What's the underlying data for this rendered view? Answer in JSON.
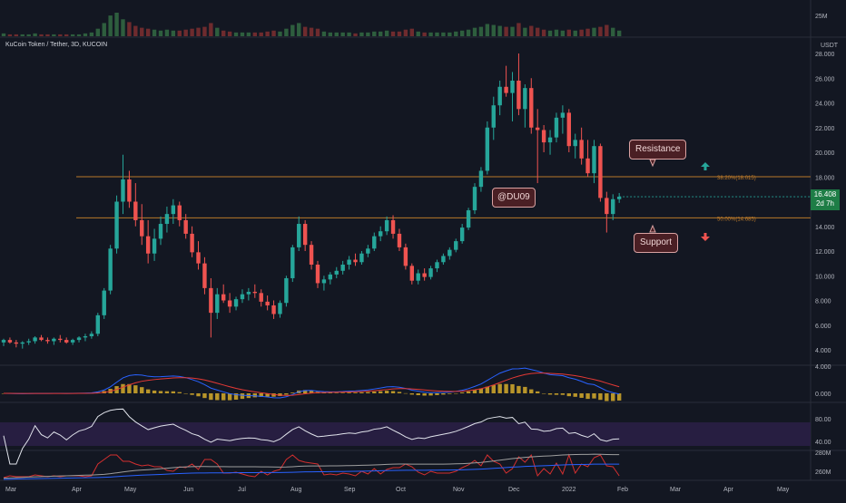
{
  "header": {
    "symbol": "KuCoin Token / Tether, 3D, KUCOIN"
  },
  "volume_axis": {
    "top_label": "25M"
  },
  "price_axis": {
    "unit": "USDT",
    "ticks": [
      "28.000",
      "26.000",
      "24.000",
      "22.000",
      "20.000",
      "18.000",
      "16.000",
      "14.000",
      "12.000",
      "10.000",
      "8.000",
      "6.000",
      "4.000"
    ],
    "last_price": "16.408",
    "countdown": "2d 7h"
  },
  "macd_axis": {
    "ticks": [
      "4.000",
      "0.000"
    ]
  },
  "rsi_axis": {
    "ticks": [
      "80.00",
      "40.00"
    ]
  },
  "bottom_axis": {
    "ticks": [
      "280M",
      "260M"
    ]
  },
  "time_axis": {
    "labels": [
      "Mar",
      "Apr",
      "May",
      "Jun",
      "Jul",
      "Aug",
      "Sep",
      "Oct",
      "Nov",
      "Dec",
      "2022",
      "Feb",
      "Mar",
      "Apr",
      "May"
    ]
  },
  "fib_levels": [
    {
      "label": "38.20%(18.015)",
      "value": 18.015
    },
    {
      "label": "50.00%(14.685)",
      "value": 14.685
    }
  ],
  "annotations": {
    "resistance": "Resistance",
    "support": "Support",
    "watermark": "@DU09"
  },
  "colors": {
    "up": "#26a69a",
    "down": "#ef5350",
    "fib": "#b8782a",
    "background": "#131722"
  },
  "chart_data": {
    "type": "candlestick",
    "timeframe": "3D",
    "ylim": [
      3,
      29
    ],
    "ohlc": [
      [
        4.6,
        4.9,
        4.3,
        4.8
      ],
      [
        4.8,
        5.0,
        4.5,
        4.6
      ],
      [
        4.6,
        4.8,
        4.2,
        4.5
      ],
      [
        4.5,
        4.7,
        4.1,
        4.6
      ],
      [
        4.6,
        4.9,
        4.4,
        4.7
      ],
      [
        4.7,
        5.1,
        4.5,
        5.0
      ],
      [
        5.0,
        5.2,
        4.7,
        4.8
      ],
      [
        4.8,
        5.0,
        4.5,
        4.7
      ],
      [
        4.7,
        5.0,
        4.4,
        4.9
      ],
      [
        4.9,
        5.2,
        4.6,
        4.8
      ],
      [
        4.8,
        5.0,
        4.5,
        4.6
      ],
      [
        4.6,
        4.9,
        4.4,
        4.8
      ],
      [
        4.8,
        5.1,
        4.6,
        5.0
      ],
      [
        5.0,
        5.3,
        4.7,
        5.1
      ],
      [
        5.1,
        5.5,
        4.9,
        5.3
      ],
      [
        5.3,
        7.0,
        5.1,
        6.8
      ],
      [
        6.8,
        9.0,
        6.5,
        8.8
      ],
      [
        8.8,
        12.5,
        8.5,
        12.2
      ],
      [
        12.2,
        16.5,
        11.8,
        16.0
      ],
      [
        16.0,
        19.8,
        15.0,
        17.8
      ],
      [
        17.8,
        18.5,
        15.5,
        16.0
      ],
      [
        16.0,
        17.5,
        14.0,
        14.5
      ],
      [
        14.5,
        15.8,
        12.5,
        13.2
      ],
      [
        13.2,
        14.5,
        11.0,
        11.8
      ],
      [
        11.8,
        13.8,
        11.2,
        13.0
      ],
      [
        13.0,
        14.8,
        12.5,
        14.2
      ],
      [
        14.2,
        15.6,
        13.5,
        15.0
      ],
      [
        15.0,
        16.2,
        14.2,
        15.7
      ],
      [
        15.7,
        16.0,
        14.0,
        14.5
      ],
      [
        14.5,
        15.0,
        13.0,
        13.4
      ],
      [
        13.4,
        14.0,
        11.5,
        11.9
      ],
      [
        11.9,
        12.8,
        10.5,
        11.0
      ],
      [
        11.0,
        11.5,
        8.5,
        9.0
      ],
      [
        9.0,
        9.8,
        5.0,
        7.0
      ],
      [
        7.0,
        9.0,
        6.5,
        8.5
      ],
      [
        8.5,
        9.3,
        7.8,
        8.0
      ],
      [
        8.0,
        8.6,
        7.0,
        7.5
      ],
      [
        7.5,
        8.3,
        7.2,
        8.1
      ],
      [
        8.1,
        8.9,
        7.8,
        8.5
      ],
      [
        8.5,
        9.0,
        8.0,
        8.7
      ],
      [
        8.7,
        9.3,
        8.2,
        8.6
      ],
      [
        8.6,
        8.9,
        7.5,
        7.9
      ],
      [
        7.9,
        8.4,
        7.2,
        7.6
      ],
      [
        7.6,
        8.0,
        6.5,
        6.9
      ],
      [
        6.9,
        8.0,
        6.6,
        7.8
      ],
      [
        7.8,
        10.0,
        7.5,
        9.8
      ],
      [
        9.8,
        12.5,
        9.5,
        12.3
      ],
      [
        12.3,
        14.8,
        12.0,
        14.2
      ],
      [
        14.2,
        14.5,
        12.0,
        12.5
      ],
      [
        12.5,
        12.8,
        10.5,
        10.9
      ],
      [
        10.9,
        11.2,
        9.0,
        9.4
      ],
      [
        9.4,
        10.0,
        8.8,
        9.7
      ],
      [
        9.7,
        10.3,
        9.3,
        10.1
      ],
      [
        10.1,
        10.7,
        9.8,
        10.4
      ],
      [
        10.4,
        11.2,
        10.1,
        10.9
      ],
      [
        10.9,
        11.6,
        10.5,
        11.3
      ],
      [
        11.3,
        11.8,
        10.8,
        11.1
      ],
      [
        11.1,
        12.0,
        10.9,
        11.8
      ],
      [
        11.8,
        12.5,
        11.5,
        12.2
      ],
      [
        12.2,
        13.5,
        12.0,
        13.2
      ],
      [
        13.2,
        14.0,
        12.8,
        13.6
      ],
      [
        13.6,
        14.8,
        13.3,
        14.5
      ],
      [
        14.5,
        14.9,
        13.0,
        13.4
      ],
      [
        13.4,
        13.8,
        12.0,
        12.3
      ],
      [
        12.3,
        12.6,
        10.5,
        10.8
      ],
      [
        10.8,
        11.0,
        9.3,
        9.6
      ],
      [
        9.6,
        10.5,
        9.3,
        10.2
      ],
      [
        10.2,
        10.6,
        9.6,
        9.9
      ],
      [
        9.9,
        10.8,
        9.7,
        10.6
      ],
      [
        10.6,
        11.3,
        10.3,
        11.1
      ],
      [
        11.1,
        11.8,
        10.9,
        11.6
      ],
      [
        11.6,
        12.3,
        11.3,
        12.1
      ],
      [
        12.1,
        13.0,
        11.9,
        12.8
      ],
      [
        12.8,
        14.2,
        12.6,
        13.9
      ],
      [
        13.9,
        15.5,
        13.7,
        15.3
      ],
      [
        15.3,
        17.5,
        15.0,
        17.2
      ],
      [
        17.2,
        18.8,
        16.8,
        18.5
      ],
      [
        18.5,
        22.5,
        18.2,
        22.0
      ],
      [
        22.0,
        24.5,
        21.0,
        23.8
      ],
      [
        23.8,
        25.8,
        23.0,
        25.3
      ],
      [
        25.3,
        27.0,
        24.5,
        24.8
      ],
      [
        24.8,
        26.5,
        22.5,
        25.8
      ],
      [
        25.8,
        28.0,
        23.0,
        23.5
      ],
      [
        23.5,
        25.5,
        22.0,
        25.2
      ],
      [
        25.2,
        26.0,
        21.5,
        22.0
      ],
      [
        22.0,
        23.5,
        17.5,
        21.8
      ],
      [
        21.8,
        22.2,
        20.0,
        20.8
      ],
      [
        20.8,
        21.8,
        19.8,
        21.2
      ],
      [
        21.2,
        23.2,
        20.8,
        22.8
      ],
      [
        22.8,
        23.8,
        21.5,
        23.2
      ],
      [
        23.2,
        23.5,
        20.0,
        20.5
      ],
      [
        20.5,
        21.5,
        19.5,
        21.0
      ],
      [
        21.0,
        22.0,
        19.0,
        19.5
      ],
      [
        19.5,
        21.0,
        18.0,
        18.3
      ],
      [
        18.3,
        21.0,
        17.5,
        20.5
      ],
      [
        20.5,
        20.7,
        16.0,
        16.3
      ],
      [
        16.3,
        16.8,
        13.5,
        15.0
      ],
      [
        15.0,
        16.6,
        14.5,
        16.2
      ],
      [
        16.2,
        16.7,
        15.9,
        16.4
      ]
    ],
    "volume": [
      3,
      2,
      2,
      2,
      2,
      3,
      2,
      2,
      2,
      2,
      2,
      2,
      2,
      3,
      4,
      8,
      14,
      22,
      25,
      18,
      15,
      11,
      9,
      8,
      7,
      6,
      7,
      6,
      6,
      7,
      8,
      9,
      10,
      14,
      9,
      6,
      5,
      4,
      4,
      4,
      4,
      4,
      5,
      6,
      5,
      8,
      12,
      14,
      10,
      9,
      8,
      5,
      4,
      4,
      4,
      4,
      3,
      4,
      4,
      5,
      5,
      6,
      5,
      5,
      7,
      8,
      5,
      4,
      4,
      4,
      4,
      4,
      5,
      6,
      7,
      9,
      10,
      13,
      12,
      11,
      10,
      10,
      14,
      9,
      11,
      9,
      7,
      6,
      7,
      6,
      7,
      6,
      7,
      8,
      9,
      10,
      12,
      9,
      6
    ],
    "macd": {
      "range": [
        -2,
        5
      ]
    },
    "rsi": {
      "range": [
        20,
        90
      ],
      "upper": 70,
      "lower": 30
    }
  }
}
